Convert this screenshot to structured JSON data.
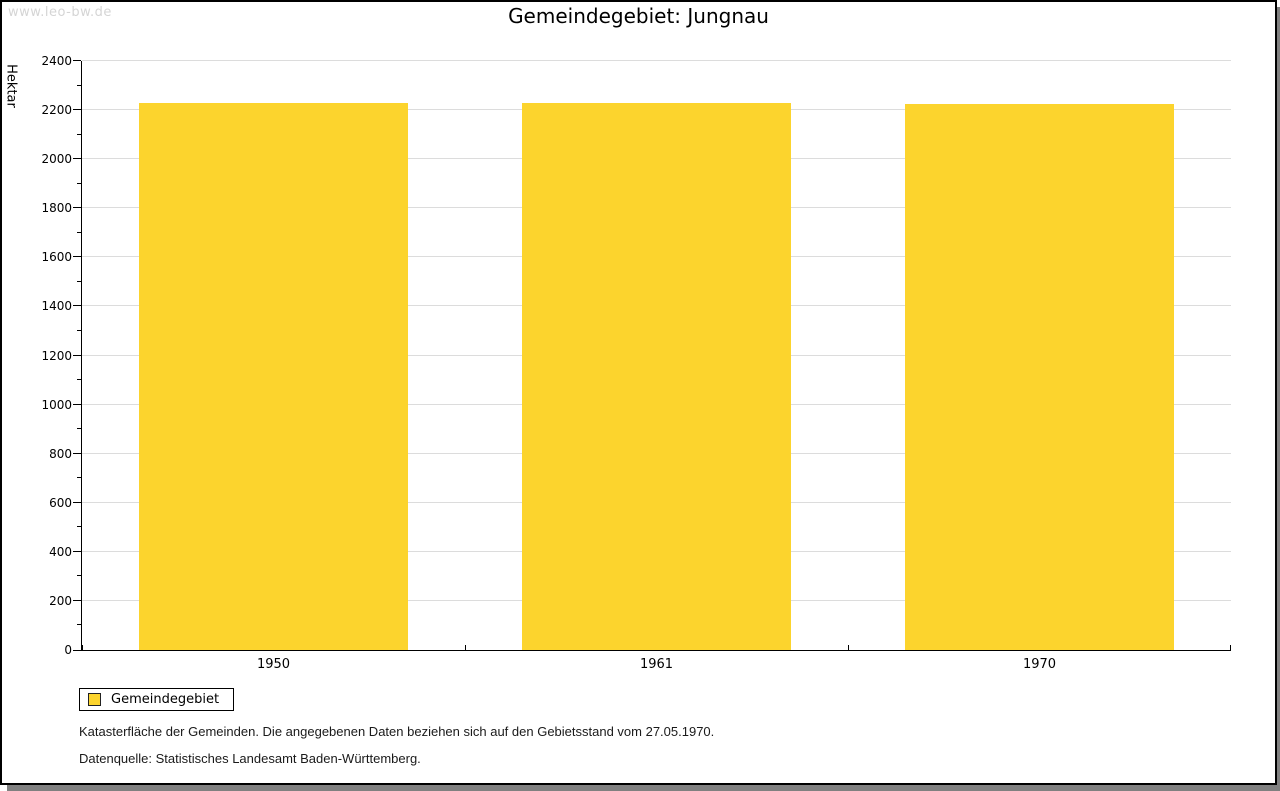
{
  "watermark": "www.leo-bw.de",
  "title": "Gemeindegebiet: Jungnau",
  "chart_data": {
    "type": "bar",
    "title": "Gemeindegebiet: Jungnau",
    "categories": [
      "1950",
      "1961",
      "1970"
    ],
    "series": [
      {
        "name": "Gemeindegebiet",
        "values": [
          2230,
          2230,
          2226
        ]
      }
    ],
    "xlabel": "",
    "ylabel": "Hektar",
    "ylim": [
      0,
      2400
    ],
    "ytick_major_step": 200,
    "ytick_minor_step": 100,
    "yticks": [
      0,
      200,
      400,
      600,
      800,
      1000,
      1200,
      1400,
      1600,
      1800,
      2000,
      2200,
      2400
    ],
    "grid": true,
    "bar_fraction": 0.7,
    "legend_position": "bottom-left"
  },
  "legend": {
    "items": [
      {
        "label": "Gemeindegebiet",
        "color": "#fcd42d"
      }
    ]
  },
  "footnotes": [
    "Katasterfläche der Gemeinden. Die angegebenen Daten beziehen sich auf den Gebietsstand vom 27.05.1970.",
    "Datenquelle: Statistisches Landesamt Baden-Württemberg."
  ],
  "colors": {
    "bar": "#fcd42d",
    "gridline": "#dcdcdc",
    "axis": "#000000",
    "panel_background": "#ffffff",
    "panel_border": "#000000",
    "shadow": "#808080",
    "watermark": "#d5d5d5"
  }
}
